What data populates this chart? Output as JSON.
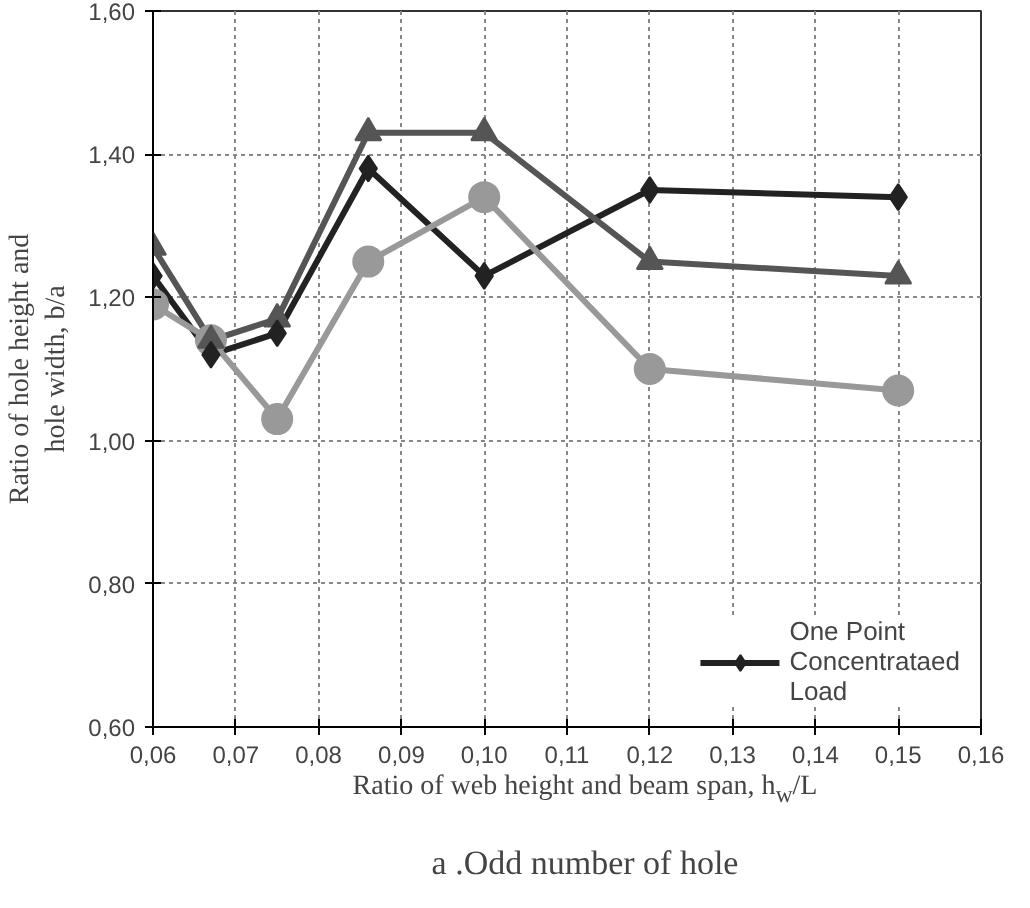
{
  "chart_data": {
    "type": "line",
    "title": "a .Odd number of hole",
    "xlabel": "Ratio of web height and beam span, h$_{w}$/L",
    "ylabel": "Ratio of hole height and hole width, b/a",
    "series": [
      {
        "name": "One Point Concentrataed Load",
        "color": "#222222",
        "marker": "diamond",
        "x": [
          0.06,
          0.067,
          0.075,
          0.086,
          0.1,
          0.12,
          0.15
        ],
        "values": [
          1.23,
          1.12,
          1.15,
          1.38,
          1.23,
          1.35,
          1.34
        ]
      },
      {
        "color": "#555555",
        "marker": "triangle",
        "x": [
          0.06,
          0.067,
          0.075,
          0.086,
          0.1,
          0.12,
          0.15
        ],
        "values": [
          1.27,
          1.14,
          1.17,
          1.43,
          1.43,
          1.25,
          1.23
        ]
      },
      {
        "color": "#999999",
        "marker": "circle",
        "x": [
          0.06,
          0.067,
          0.075,
          0.086,
          0.1,
          0.12,
          0.15
        ],
        "values": [
          1.19,
          1.14,
          1.03,
          1.25,
          1.34,
          1.1,
          1.07
        ]
      }
    ],
    "xlim": [
      0.06,
      0.16
    ],
    "ylim": [
      0.6,
      1.6
    ],
    "xticks": [
      {
        "value": 0.06,
        "label": "0,06"
      },
      {
        "value": 0.07,
        "label": "0,07"
      },
      {
        "value": 0.08,
        "label": "0,08"
      },
      {
        "value": 0.09,
        "label": "0,09"
      },
      {
        "value": 0.1,
        "label": "0,10"
      },
      {
        "value": 0.11,
        "label": "0,11"
      },
      {
        "value": 0.12,
        "label": "0,12"
      },
      {
        "value": 0.13,
        "label": "0,13"
      },
      {
        "value": 0.14,
        "label": "0,14"
      },
      {
        "value": 0.15,
        "label": "0,15"
      },
      {
        "value": 0.16,
        "label": "0,16"
      }
    ],
    "yticks": [
      {
        "value": 0.6,
        "label": "0,60"
      },
      {
        "value": 0.8,
        "label": "0,80"
      },
      {
        "value": 1.0,
        "label": "1,00"
      },
      {
        "value": 1.2,
        "label": "1,20"
      },
      {
        "value": 1.4,
        "label": "1,40"
      },
      {
        "value": 1.6,
        "label": "1,60"
      }
    ],
    "grid": true,
    "legend": "bottom right",
    "line_style": "solid"
  }
}
